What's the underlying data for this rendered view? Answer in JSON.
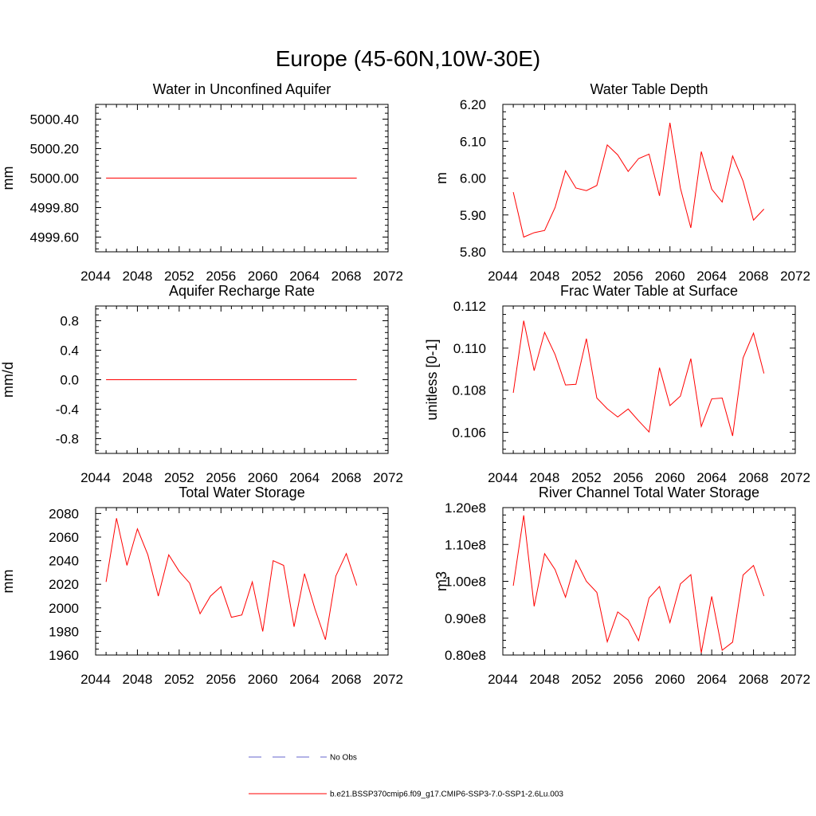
{
  "figure": {
    "title": "Europe (45-60N,10W-30E)"
  },
  "legend": {
    "entries": [
      {
        "label": "No Obs",
        "color": "#6666cc",
        "style": "dashed"
      },
      {
        "label": "b.e21.BSSP370cmip6.f09_g17.CMIP6-SSP3-7.0-SSP1-2.6Lu.003",
        "color": "#ff0000",
        "style": "solid"
      }
    ]
  },
  "chart_data": [
    {
      "type": "line",
      "title": "Water in Unconfined Aquifer",
      "ylabel": "mm",
      "xlim": [
        2044,
        2072
      ],
      "ylim": [
        4999.5,
        5000.5
      ],
      "xticks": [
        2044,
        2048,
        2052,
        2056,
        2060,
        2064,
        2068,
        2072
      ],
      "yticks": [
        4999.6,
        4999.8,
        5000.0,
        5000.2,
        5000.4
      ],
      "ytick_labels": [
        "4999.60",
        "4999.80",
        "5000.00",
        "5000.20",
        "5000.40"
      ],
      "x": [
        2045,
        2046,
        2047,
        2048,
        2049,
        2050,
        2051,
        2052,
        2053,
        2054,
        2055,
        2056,
        2057,
        2058,
        2059,
        2060,
        2061,
        2062,
        2063,
        2064,
        2065,
        2066,
        2067,
        2068,
        2069
      ],
      "series": [
        {
          "values": [
            5000,
            5000,
            5000,
            5000,
            5000,
            5000,
            5000,
            5000,
            5000,
            5000,
            5000,
            5000,
            5000,
            5000,
            5000,
            5000,
            5000,
            5000,
            5000,
            5000,
            5000,
            5000,
            5000,
            5000,
            5000
          ],
          "color": "#ff0000"
        }
      ]
    },
    {
      "type": "line",
      "title": "Water Table Depth",
      "ylabel": "m",
      "xlim": [
        2044,
        2072
      ],
      "ylim": [
        5.8,
        6.2
      ],
      "xticks": [
        2044,
        2048,
        2052,
        2056,
        2060,
        2064,
        2068,
        2072
      ],
      "yticks": [
        5.8,
        5.9,
        6.0,
        6.1,
        6.2
      ],
      "ytick_labels": [
        "5.80",
        "5.90",
        "6.00",
        "6.10",
        "6.20"
      ],
      "x": [
        2045,
        2046,
        2047,
        2048,
        2049,
        2050,
        2051,
        2052,
        2053,
        2054,
        2055,
        2056,
        2057,
        2058,
        2059,
        2060,
        2061,
        2062,
        2063,
        2064,
        2065,
        2066,
        2067,
        2068,
        2069
      ],
      "series": [
        {
          "values": [
            5.962,
            5.84,
            5.852,
            5.858,
            5.92,
            6.02,
            5.973,
            5.966,
            5.98,
            6.09,
            6.063,
            6.018,
            6.053,
            6.065,
            5.952,
            6.15,
            5.973,
            5.865,
            6.072,
            5.97,
            5.935,
            6.06,
            5.992,
            5.886,
            5.916
          ],
          "color": "#ff0000"
        }
      ]
    },
    {
      "type": "line",
      "title": "Aquifer Recharge Rate",
      "ylabel": "mm/d",
      "xlim": [
        2044,
        2072
      ],
      "ylim": [
        -1.0,
        1.0
      ],
      "xticks": [
        2044,
        2048,
        2052,
        2056,
        2060,
        2064,
        2068,
        2072
      ],
      "yticks": [
        -0.8,
        -0.4,
        0.0,
        0.4,
        0.8
      ],
      "ytick_labels": [
        "-0.8",
        "-0.4",
        "0.0",
        "0.4",
        "0.8"
      ],
      "x": [
        2045,
        2046,
        2047,
        2048,
        2049,
        2050,
        2051,
        2052,
        2053,
        2054,
        2055,
        2056,
        2057,
        2058,
        2059,
        2060,
        2061,
        2062,
        2063,
        2064,
        2065,
        2066,
        2067,
        2068,
        2069
      ],
      "series": [
        {
          "values": [
            0,
            0,
            0,
            0,
            0,
            0,
            0,
            0,
            0,
            0,
            0,
            0,
            0,
            0,
            0,
            0,
            0,
            0,
            0,
            0,
            0,
            0,
            0,
            0,
            0
          ],
          "color": "#ff0000"
        }
      ]
    },
    {
      "type": "line",
      "title": "Frac Water Table at Surface",
      "ylabel": "unitless [0-1]",
      "xlim": [
        2044,
        2072
      ],
      "ylim": [
        0.105,
        0.112
      ],
      "xticks": [
        2044,
        2048,
        2052,
        2056,
        2060,
        2064,
        2068,
        2072
      ],
      "yticks": [
        0.106,
        0.108,
        0.11,
        0.112
      ],
      "ytick_labels": [
        "0.106",
        "0.108",
        "0.110",
        "0.112"
      ],
      "x": [
        2045,
        2046,
        2047,
        2048,
        2049,
        2050,
        2051,
        2052,
        2053,
        2054,
        2055,
        2056,
        2057,
        2058,
        2059,
        2060,
        2061,
        2062,
        2063,
        2064,
        2065,
        2066,
        2067,
        2068,
        2069
      ],
      "series": [
        {
          "values": [
            0.10788,
            0.1113,
            0.10893,
            0.11075,
            0.1097,
            0.10825,
            0.10828,
            0.11045,
            0.10763,
            0.10712,
            0.10673,
            0.10711,
            0.10655,
            0.10602,
            0.10907,
            0.10727,
            0.10772,
            0.1095,
            0.10628,
            0.10759,
            0.10763,
            0.10583,
            0.10953,
            0.11071,
            0.1088
          ],
          "color": "#ff0000"
        }
      ]
    },
    {
      "type": "line",
      "title": "Total Water Storage",
      "ylabel": "mm",
      "xlim": [
        2044,
        2072
      ],
      "ylim": [
        1960,
        2085
      ],
      "xticks": [
        2044,
        2048,
        2052,
        2056,
        2060,
        2064,
        2068,
        2072
      ],
      "yticks": [
        1960,
        1980,
        2000,
        2020,
        2040,
        2060,
        2080
      ],
      "ytick_labels": [
        "1960",
        "1980",
        "2000",
        "2020",
        "2040",
        "2060",
        "2080"
      ],
      "x": [
        2045,
        2046,
        2047,
        2048,
        2049,
        2050,
        2051,
        2052,
        2053,
        2054,
        2055,
        2056,
        2057,
        2058,
        2059,
        2060,
        2061,
        2062,
        2063,
        2064,
        2065,
        2066,
        2067,
        2068,
        2069
      ],
      "series": [
        {
          "values": [
            2022,
            2076,
            2036,
            2067,
            2045,
            2010,
            2045,
            2031,
            2021,
            1995,
            2010,
            2018,
            1992,
            1994,
            2022,
            1980,
            2040,
            2036,
            1984,
            2029,
            1999,
            1973,
            2027,
            2046,
            2019
          ],
          "color": "#ff0000"
        }
      ]
    },
    {
      "type": "line",
      "title": "River Channel Total Water Storage",
      "ylabel": "m3",
      "xlim": [
        2044,
        2072
      ],
      "ylim": [
        80000000,
        120000000
      ],
      "xticks": [
        2044,
        2048,
        2052,
        2056,
        2060,
        2064,
        2068,
        2072
      ],
      "yticks": [
        80000000,
        90000000,
        100000000,
        110000000,
        120000000
      ],
      "ytick_labels": [
        "0.80e8",
        "0.90e8",
        "1.00e8",
        "1.10e8",
        "1.20e8"
      ],
      "x": [
        2045,
        2046,
        2047,
        2048,
        2049,
        2050,
        2051,
        2052,
        2053,
        2054,
        2055,
        2056,
        2057,
        2058,
        2059,
        2060,
        2061,
        2062,
        2063,
        2064,
        2065,
        2066,
        2067,
        2068,
        2069
      ],
      "series": [
        {
          "values": [
            98800000,
            117900000,
            93200000,
            107500000,
            103200000,
            95700000,
            105700000,
            100000000,
            97000000,
            83600000,
            91700000,
            89500000,
            83900000,
            95500000,
            98600000,
            88800000,
            99300000,
            101800000,
            80600000,
            95900000,
            81300000,
            83500000,
            101700000,
            104300000,
            96000000
          ],
          "color": "#ff0000"
        }
      ]
    }
  ]
}
